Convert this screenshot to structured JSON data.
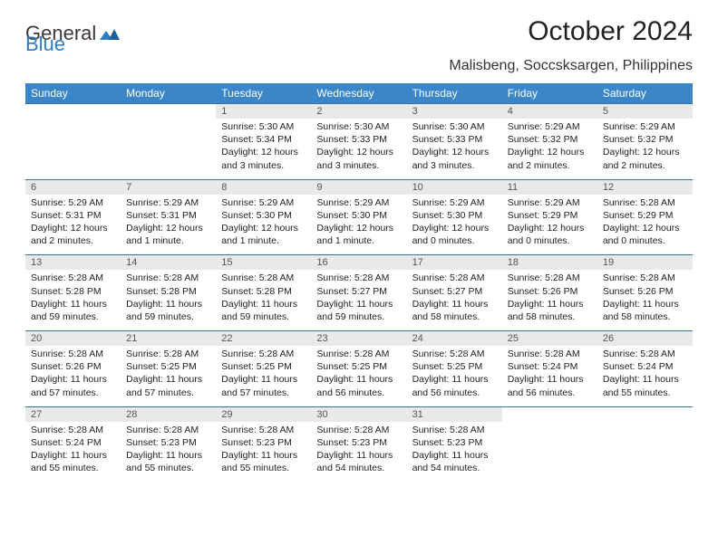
{
  "brand": {
    "general": "General",
    "blue": "Blue"
  },
  "title": "October 2024",
  "subtitle": "Malisbeng, Soccsksargen, Philippines",
  "colors": {
    "header_bg": "#3a86c8",
    "header_text": "#ffffff",
    "daynum_bg": "#e9e9e9",
    "row_divider": "#3a6fa5",
    "text": "#222222",
    "brand_gray": "#3a3a3a",
    "brand_blue": "#2f7dc0",
    "background": "#ffffff"
  },
  "typography": {
    "title_fontsize": 30,
    "subtitle_fontsize": 16,
    "header_fontsize": 12,
    "daynum_fontsize": 11,
    "body_fontsize": 10.5
  },
  "layout": {
    "columns": 7,
    "rows": 5
  },
  "day_headers": [
    "Sunday",
    "Monday",
    "Tuesday",
    "Wednesday",
    "Thursday",
    "Friday",
    "Saturday"
  ],
  "weeks": [
    [
      {
        "empty": true
      },
      {
        "empty": true
      },
      {
        "n": "1",
        "sunrise": "5:30 AM",
        "sunset": "5:34 PM",
        "daylight": "12 hours and 3 minutes."
      },
      {
        "n": "2",
        "sunrise": "5:30 AM",
        "sunset": "5:33 PM",
        "daylight": "12 hours and 3 minutes."
      },
      {
        "n": "3",
        "sunrise": "5:30 AM",
        "sunset": "5:33 PM",
        "daylight": "12 hours and 3 minutes."
      },
      {
        "n": "4",
        "sunrise": "5:29 AM",
        "sunset": "5:32 PM",
        "daylight": "12 hours and 2 minutes."
      },
      {
        "n": "5",
        "sunrise": "5:29 AM",
        "sunset": "5:32 PM",
        "daylight": "12 hours and 2 minutes."
      }
    ],
    [
      {
        "n": "6",
        "sunrise": "5:29 AM",
        "sunset": "5:31 PM",
        "daylight": "12 hours and 2 minutes."
      },
      {
        "n": "7",
        "sunrise": "5:29 AM",
        "sunset": "5:31 PM",
        "daylight": "12 hours and 1 minute."
      },
      {
        "n": "8",
        "sunrise": "5:29 AM",
        "sunset": "5:30 PM",
        "daylight": "12 hours and 1 minute."
      },
      {
        "n": "9",
        "sunrise": "5:29 AM",
        "sunset": "5:30 PM",
        "daylight": "12 hours and 1 minute."
      },
      {
        "n": "10",
        "sunrise": "5:29 AM",
        "sunset": "5:30 PM",
        "daylight": "12 hours and 0 minutes."
      },
      {
        "n": "11",
        "sunrise": "5:29 AM",
        "sunset": "5:29 PM",
        "daylight": "12 hours and 0 minutes."
      },
      {
        "n": "12",
        "sunrise": "5:28 AM",
        "sunset": "5:29 PM",
        "daylight": "12 hours and 0 minutes."
      }
    ],
    [
      {
        "n": "13",
        "sunrise": "5:28 AM",
        "sunset": "5:28 PM",
        "daylight": "11 hours and 59 minutes."
      },
      {
        "n": "14",
        "sunrise": "5:28 AM",
        "sunset": "5:28 PM",
        "daylight": "11 hours and 59 minutes."
      },
      {
        "n": "15",
        "sunrise": "5:28 AM",
        "sunset": "5:28 PM",
        "daylight": "11 hours and 59 minutes."
      },
      {
        "n": "16",
        "sunrise": "5:28 AM",
        "sunset": "5:27 PM",
        "daylight": "11 hours and 59 minutes."
      },
      {
        "n": "17",
        "sunrise": "5:28 AM",
        "sunset": "5:27 PM",
        "daylight": "11 hours and 58 minutes."
      },
      {
        "n": "18",
        "sunrise": "5:28 AM",
        "sunset": "5:26 PM",
        "daylight": "11 hours and 58 minutes."
      },
      {
        "n": "19",
        "sunrise": "5:28 AM",
        "sunset": "5:26 PM",
        "daylight": "11 hours and 58 minutes."
      }
    ],
    [
      {
        "n": "20",
        "sunrise": "5:28 AM",
        "sunset": "5:26 PM",
        "daylight": "11 hours and 57 minutes."
      },
      {
        "n": "21",
        "sunrise": "5:28 AM",
        "sunset": "5:25 PM",
        "daylight": "11 hours and 57 minutes."
      },
      {
        "n": "22",
        "sunrise": "5:28 AM",
        "sunset": "5:25 PM",
        "daylight": "11 hours and 57 minutes."
      },
      {
        "n": "23",
        "sunrise": "5:28 AM",
        "sunset": "5:25 PM",
        "daylight": "11 hours and 56 minutes."
      },
      {
        "n": "24",
        "sunrise": "5:28 AM",
        "sunset": "5:25 PM",
        "daylight": "11 hours and 56 minutes."
      },
      {
        "n": "25",
        "sunrise": "5:28 AM",
        "sunset": "5:24 PM",
        "daylight": "11 hours and 56 minutes."
      },
      {
        "n": "26",
        "sunrise": "5:28 AM",
        "sunset": "5:24 PM",
        "daylight": "11 hours and 55 minutes."
      }
    ],
    [
      {
        "n": "27",
        "sunrise": "5:28 AM",
        "sunset": "5:24 PM",
        "daylight": "11 hours and 55 minutes."
      },
      {
        "n": "28",
        "sunrise": "5:28 AM",
        "sunset": "5:23 PM",
        "daylight": "11 hours and 55 minutes."
      },
      {
        "n": "29",
        "sunrise": "5:28 AM",
        "sunset": "5:23 PM",
        "daylight": "11 hours and 55 minutes."
      },
      {
        "n": "30",
        "sunrise": "5:28 AM",
        "sunset": "5:23 PM",
        "daylight": "11 hours and 54 minutes."
      },
      {
        "n": "31",
        "sunrise": "5:28 AM",
        "sunset": "5:23 PM",
        "daylight": "11 hours and 54 minutes."
      },
      {
        "empty": true
      },
      {
        "empty": true
      }
    ]
  ],
  "labels": {
    "sunrise": "Sunrise:",
    "sunset": "Sunset:",
    "daylight": "Daylight:"
  }
}
